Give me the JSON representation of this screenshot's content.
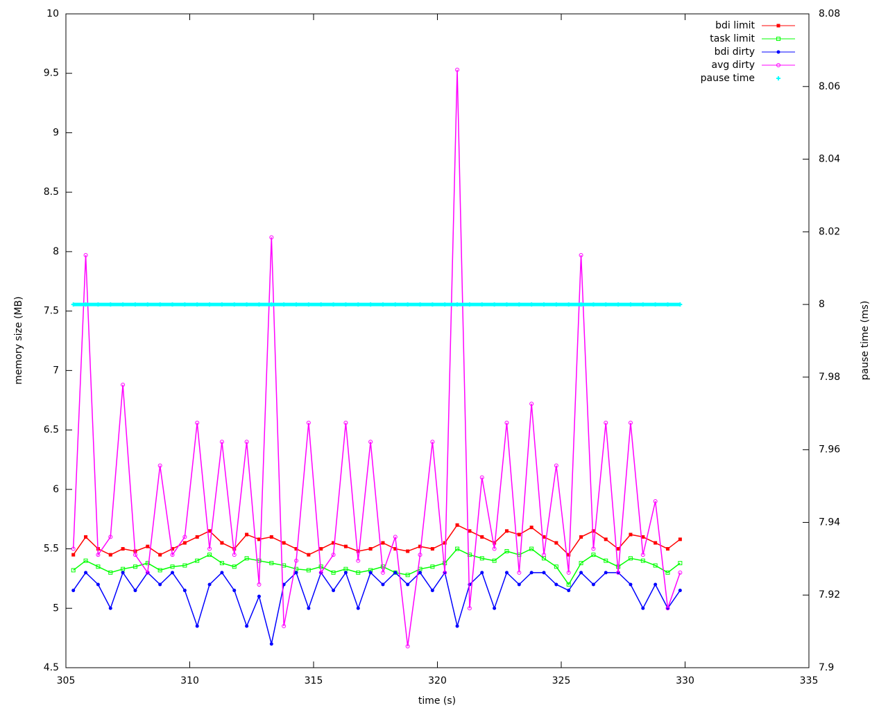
{
  "chart_data": {
    "type": "line",
    "xlabel": "time (s)",
    "ylabel": "memory size (MB)",
    "y2label": "pause time (ms)",
    "xlim": [
      305,
      335
    ],
    "xticks": [
      305,
      310,
      315,
      320,
      325,
      330,
      335
    ],
    "ylim": [
      4.5,
      10
    ],
    "yticks": [
      4.5,
      5,
      5.5,
      6,
      6.5,
      7,
      7.5,
      8,
      8.5,
      9,
      9.5,
      10
    ],
    "y2lim": [
      7.9,
      8.08
    ],
    "y2ticks": [
      7.9,
      7.92,
      7.94,
      7.96,
      7.98,
      8,
      8.02,
      8.04,
      8.06,
      8.08
    ],
    "legend": "top-right",
    "grid": false,
    "x": [
      305.3,
      305.8,
      306.3,
      306.8,
      307.3,
      307.8,
      308.3,
      308.8,
      309.3,
      309.8,
      310.3,
      310.8,
      311.3,
      311.8,
      312.3,
      312.8,
      313.3,
      313.8,
      314.3,
      314.8,
      315.3,
      315.8,
      316.3,
      316.8,
      317.3,
      317.8,
      318.3,
      318.8,
      319.3,
      319.8,
      320.3,
      320.8,
      321.3,
      321.8,
      322.3,
      322.8,
      323.3,
      323.8,
      324.3,
      324.8,
      325.3,
      325.8,
      326.3,
      326.8,
      327.3,
      327.8,
      328.3,
      328.8,
      329.3,
      329.8
    ],
    "series": [
      {
        "name": "bdi limit",
        "color": "#ff0000",
        "marker": "square",
        "values": [
          5.45,
          5.6,
          5.5,
          5.45,
          5.5,
          5.48,
          5.52,
          5.45,
          5.5,
          5.55,
          5.6,
          5.65,
          5.55,
          5.5,
          5.62,
          5.58,
          5.6,
          5.55,
          5.5,
          5.45,
          5.5,
          5.55,
          5.52,
          5.48,
          5.5,
          5.55,
          5.5,
          5.48,
          5.52,
          5.5,
          5.55,
          5.7,
          5.65,
          5.6,
          5.55,
          5.65,
          5.62,
          5.68,
          5.6,
          5.55,
          5.45,
          5.6,
          5.65,
          5.58,
          5.5,
          5.62,
          5.6,
          5.55,
          5.5,
          5.58
        ]
      },
      {
        "name": "task limit",
        "color": "#00ff00",
        "marker": "open-square",
        "values": [
          5.32,
          5.4,
          5.35,
          5.3,
          5.33,
          5.35,
          5.38,
          5.32,
          5.35,
          5.36,
          5.4,
          5.45,
          5.38,
          5.35,
          5.42,
          5.4,
          5.38,
          5.36,
          5.33,
          5.32,
          5.35,
          5.3,
          5.33,
          5.3,
          5.32,
          5.35,
          5.3,
          5.28,
          5.33,
          5.35,
          5.38,
          5.5,
          5.45,
          5.42,
          5.4,
          5.48,
          5.45,
          5.5,
          5.42,
          5.35,
          5.2,
          5.38,
          5.45,
          5.4,
          5.35,
          5.42,
          5.4,
          5.36,
          5.3,
          5.38
        ]
      },
      {
        "name": "bdi dirty",
        "color": "#0000ff",
        "marker": "circle",
        "values": [
          5.15,
          5.3,
          5.2,
          5.0,
          5.3,
          5.15,
          5.3,
          5.2,
          5.3,
          5.15,
          4.85,
          5.2,
          5.3,
          5.15,
          4.85,
          5.1,
          4.7,
          5.2,
          5.3,
          5.0,
          5.3,
          5.15,
          5.3,
          5.0,
          5.3,
          5.2,
          5.3,
          5.2,
          5.3,
          5.15,
          5.3,
          4.85,
          5.2,
          5.3,
          5.0,
          5.3,
          5.2,
          5.3,
          5.3,
          5.2,
          5.15,
          5.3,
          5.2,
          5.3,
          5.3,
          5.2,
          5.0,
          5.2,
          5.0,
          5.15
        ]
      },
      {
        "name": "avg dirty",
        "color": "#ff00ff",
        "marker": "open-circle",
        "values": [
          5.5,
          7.97,
          5.45,
          5.6,
          6.88,
          5.45,
          5.3,
          6.2,
          5.45,
          5.6,
          6.56,
          5.5,
          6.4,
          5.45,
          6.4,
          5.2,
          8.12,
          4.85,
          5.4,
          6.56,
          5.3,
          5.45,
          6.56,
          5.4,
          6.4,
          5.3,
          5.6,
          4.68,
          5.45,
          6.4,
          5.3,
          9.53,
          5.0,
          6.1,
          5.5,
          6.56,
          5.3,
          6.72,
          5.45,
          6.2,
          5.3,
          7.97,
          5.5,
          6.56,
          5.3,
          6.56,
          5.45,
          5.9,
          5.0,
          5.3
        ]
      },
      {
        "name": "pause time",
        "color": "#00ffff",
        "marker": "plus",
        "axis": "y2",
        "style": "points",
        "values": [
          8,
          8,
          8,
          8,
          8,
          8,
          8,
          8,
          8,
          8,
          8,
          8,
          8,
          8,
          8,
          8,
          8,
          8,
          8,
          8,
          8,
          8,
          8,
          8,
          8,
          8,
          8,
          8,
          8,
          8,
          8,
          8,
          8,
          8,
          8,
          8,
          8,
          8,
          8,
          8,
          8,
          8,
          8,
          8,
          8,
          8,
          8,
          8,
          8,
          8
        ]
      }
    ]
  }
}
